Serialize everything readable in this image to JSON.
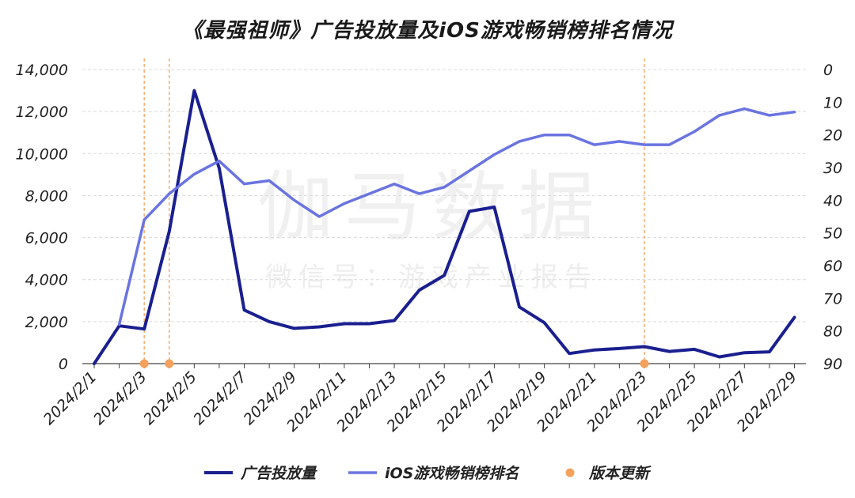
{
  "title": "《最强祖师》广告投放量及iOS游戏畅销榜排名情况",
  "watermark": {
    "main": "伽马数据",
    "sub": "微信号：游戏产业报告"
  },
  "colors": {
    "ads": "#1a1f8f",
    "rank": "#6a74e0",
    "update": "#f4a15d",
    "grid": "#d9d9d9",
    "axis": "#444444"
  },
  "chart_data": {
    "type": "line",
    "title": "《最强祖师》广告投放量及iOS游戏畅销榜排名情况",
    "x": [
      "2024/2/1",
      "2024/2/2",
      "2024/2/3",
      "2024/2/4",
      "2024/2/5",
      "2024/2/6",
      "2024/2/7",
      "2024/2/8",
      "2024/2/9",
      "2024/2/10",
      "2024/2/11",
      "2024/2/12",
      "2024/2/13",
      "2024/2/14",
      "2024/2/15",
      "2024/2/16",
      "2024/2/17",
      "2024/2/18",
      "2024/2/19",
      "2024/2/20",
      "2024/2/21",
      "2024/2/22",
      "2024/2/23",
      "2024/2/24",
      "2024/2/25",
      "2024/2/26",
      "2024/2/27",
      "2024/2/28",
      "2024/2/29"
    ],
    "x_tick_labels": [
      "2024/2/1",
      "2024/2/3",
      "2024/2/5",
      "2024/2/7",
      "2024/2/9",
      "2024/2/11",
      "2024/2/13",
      "2024/2/15",
      "2024/2/17",
      "2024/2/19",
      "2024/2/21",
      "2024/2/23",
      "2024/2/25",
      "2024/2/27",
      "2024/2/29"
    ],
    "y_left": {
      "lim": [
        0,
        14000
      ],
      "ticks": [
        "0",
        "2,000",
        "4,000",
        "6,000",
        "8,000",
        "10,000",
        "12,000",
        "14,000"
      ]
    },
    "y_right": {
      "lim": [
        0,
        90
      ],
      "inverted": true,
      "ticks": [
        "0",
        "10",
        "20",
        "30",
        "40",
        "50",
        "60",
        "70",
        "80",
        "90"
      ]
    },
    "series": [
      {
        "name": "广告投放量",
        "axis": "left",
        "values": [
          0,
          1800,
          1650,
          6300,
          13000,
          9300,
          2550,
          2000,
          1680,
          1750,
          1900,
          1900,
          2050,
          3500,
          4200,
          7250,
          7450,
          2700,
          1950,
          480,
          650,
          720,
          810,
          580,
          680,
          320,
          520,
          560,
          2200
        ]
      },
      {
        "name": "iOS游戏畅销榜排名",
        "axis": "right",
        "values": [
          null,
          78,
          46,
          38,
          32,
          28,
          35,
          34,
          40,
          45,
          41,
          38,
          35,
          38,
          36,
          31,
          26,
          22,
          20,
          20,
          23,
          22,
          23,
          23,
          19,
          14,
          12,
          14,
          13
        ]
      },
      {
        "name": "版本更新",
        "type": "marker",
        "x": [
          "2024/2/3",
          "2024/2/4",
          "2024/2/23"
        ]
      }
    ],
    "grid": true,
    "legend": "bottom"
  }
}
